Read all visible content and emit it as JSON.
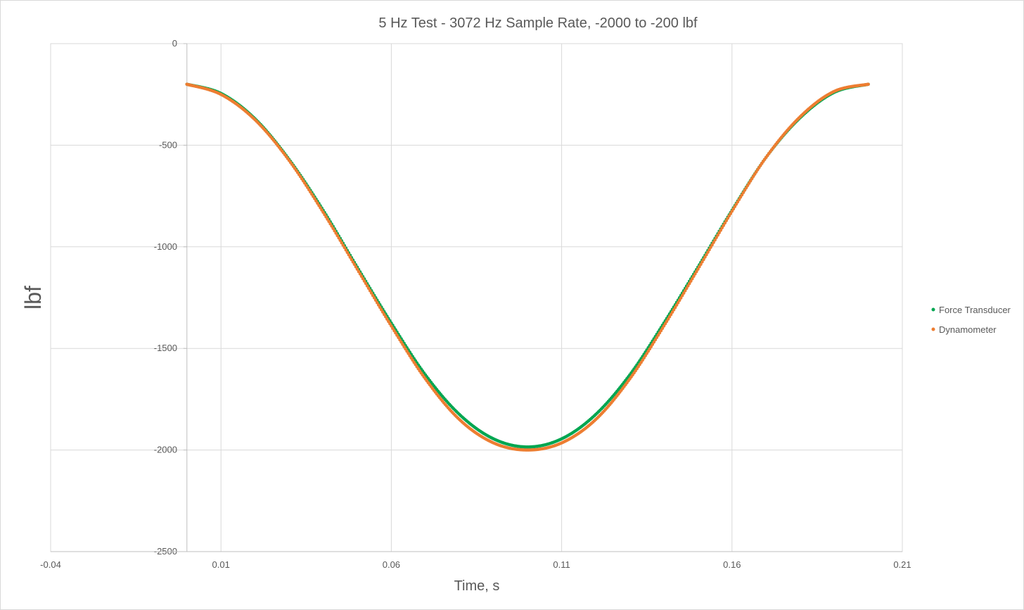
{
  "chart_data": {
    "type": "scatter",
    "title": "5 Hz Test - 3072 Hz Sample Rate, -2000 to -200 lbf",
    "xlabel": "Time, s",
    "ylabel": "lbf",
    "xlim": [
      -0.04,
      0.21
    ],
    "ylim": [
      -2500,
      0
    ],
    "x_ticks": [
      "-0.04",
      "0.01",
      "0.06",
      "0.11",
      "0.16",
      "0.21"
    ],
    "x_tick_values": [
      -0.04,
      0.01,
      0.06,
      0.11,
      0.16,
      0.21
    ],
    "y_ticks": [
      "0",
      "-500",
      "-1000",
      "-1500",
      "-2000",
      "-2500"
    ],
    "y_tick_values": [
      0,
      -500,
      -1000,
      -1500,
      -2000,
      -2500
    ],
    "grid": true,
    "legend_position": "right",
    "series": [
      {
        "name": "Force Transducer",
        "color": "#00a651",
        "x": [
          0.0,
          0.01,
          0.02,
          0.03,
          0.04,
          0.05,
          0.06,
          0.07,
          0.08,
          0.09,
          0.1,
          0.11,
          0.12,
          0.13,
          0.14,
          0.15,
          0.16,
          0.17,
          0.18,
          0.19,
          0.2
        ],
        "y": [
          -200,
          -245,
          -370,
          -570,
          -820,
          -1100,
          -1375,
          -1630,
          -1825,
          -1945,
          -1985,
          -1945,
          -1825,
          -1630,
          -1375,
          -1100,
          -820,
          -560,
          -365,
          -240,
          -200
        ]
      },
      {
        "name": "Dynamometer",
        "color": "#ed7d31",
        "x": [
          0.0,
          0.01,
          0.02,
          0.03,
          0.04,
          0.05,
          0.06,
          0.07,
          0.08,
          0.09,
          0.1,
          0.11,
          0.12,
          0.13,
          0.14,
          0.15,
          0.16,
          0.17,
          0.18,
          0.19,
          0.2
        ],
        "y": [
          -200,
          -250,
          -375,
          -575,
          -830,
          -1110,
          -1390,
          -1650,
          -1850,
          -1965,
          -2000,
          -1965,
          -1850,
          -1650,
          -1390,
          -1110,
          -825,
          -560,
          -360,
          -235,
          -200
        ]
      }
    ]
  }
}
